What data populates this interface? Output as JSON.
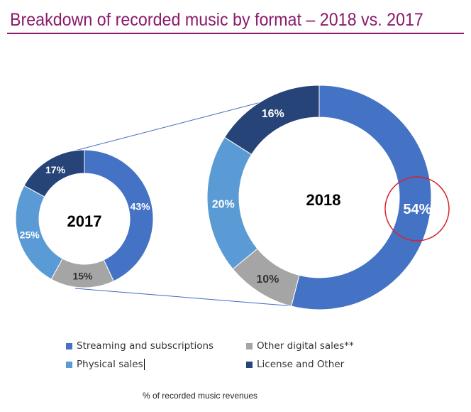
{
  "title": "Breakdown of recorded music by format – 2018 vs. 2017",
  "footnote": "% of recorded music revenues",
  "legend": [
    {
      "label": "Streaming and subscriptions",
      "color": "#4472c4"
    },
    {
      "label": "Other digital sales**",
      "color": "#a5a5a5"
    },
    {
      "label": "Physical sales",
      "color": "#5b9bd5"
    },
    {
      "label": "License and Other",
      "color": "#264478"
    }
  ],
  "highlight_color": "#d9232d",
  "chart_data": [
    {
      "type": "pie",
      "title": "2017",
      "categories": [
        "Streaming and subscriptions",
        "Other digital sales**",
        "Physical sales",
        "License and Other"
      ],
      "values": [
        43,
        15,
        25,
        17
      ],
      "labels": [
        "43%",
        "15%",
        "25%",
        "17%"
      ],
      "colors": [
        "#4472c4",
        "#a5a5a5",
        "#5b9bd5",
        "#264478"
      ]
    },
    {
      "type": "pie",
      "title": "2018",
      "categories": [
        "Streaming and subscriptions",
        "Other digital sales**",
        "Physical sales",
        "License and Other"
      ],
      "values": [
        54,
        10,
        20,
        16
      ],
      "labels": [
        "54%",
        "10%",
        "20%",
        "16%"
      ],
      "colors": [
        "#4472c4",
        "#a5a5a5",
        "#5b9bd5",
        "#264478"
      ],
      "highlighted_category": "Streaming and subscriptions"
    }
  ]
}
